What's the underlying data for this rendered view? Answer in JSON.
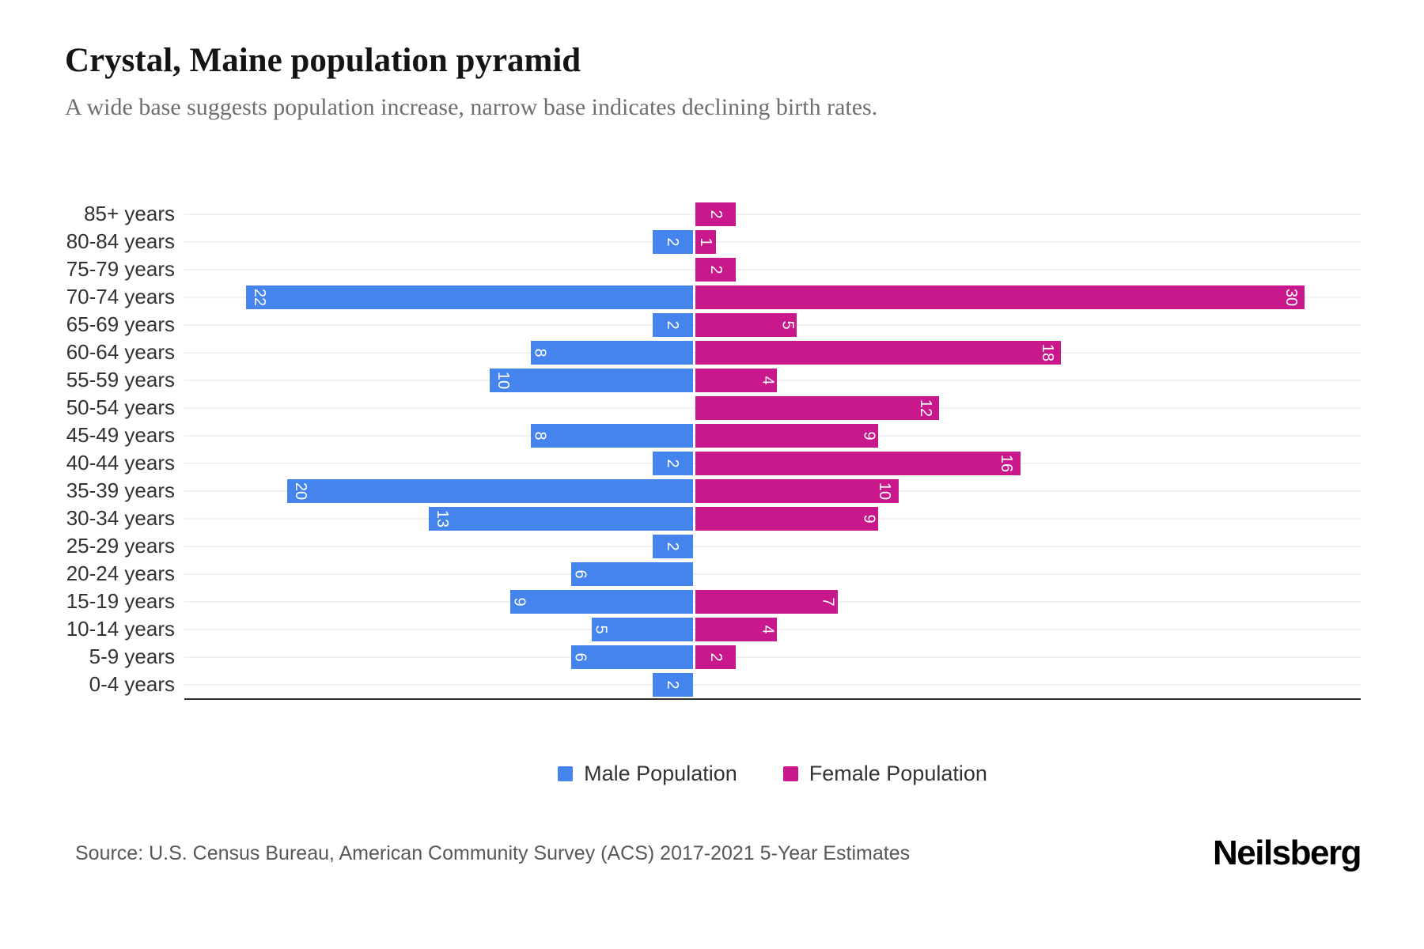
{
  "header": {
    "title": "Crystal, Maine population pyramid",
    "subtitle": "A wide base suggests population increase, narrow base indicates declining birth rates."
  },
  "chart_data": {
    "type": "bar",
    "subtype": "population-pyramid",
    "orientation": "horizontal",
    "categories": [
      "85+ years",
      "80-84 years",
      "75-79 years",
      "70-74 years",
      "65-69 years",
      "60-64 years",
      "55-59 years",
      "50-54 years",
      "45-49 years",
      "40-44 years",
      "35-39 years",
      "30-34 years",
      "25-29 years",
      "20-24 years",
      "15-19 years",
      "10-14 years",
      "5-9 years",
      "0-4 years"
    ],
    "series": [
      {
        "name": "Male Population",
        "side": "left",
        "color": "#4484ec",
        "values": [
          0,
          2,
          0,
          22,
          2,
          8,
          10,
          0,
          8,
          2,
          20,
          13,
          2,
          6,
          9,
          5,
          6,
          2
        ]
      },
      {
        "name": "Female Population",
        "side": "right",
        "color": "#c9178c",
        "values": [
          2,
          1,
          2,
          30,
          5,
          18,
          4,
          12,
          9,
          16,
          10,
          9,
          0,
          0,
          7,
          4,
          2,
          0
        ]
      }
    ],
    "value_labels": "inside bars, white, rotated 90deg",
    "xlim": {
      "male_side_max": 25,
      "female_side_max": 33
    },
    "grid": true,
    "legend_position": "bottom"
  },
  "legend": {
    "male_label": "Male Population",
    "female_label": "Female Population"
  },
  "footer": {
    "source": "Source: U.S. Census Bureau, American Community Survey (ACS) 2017-2021 5-Year Estimates",
    "brand": "Neilsberg"
  }
}
